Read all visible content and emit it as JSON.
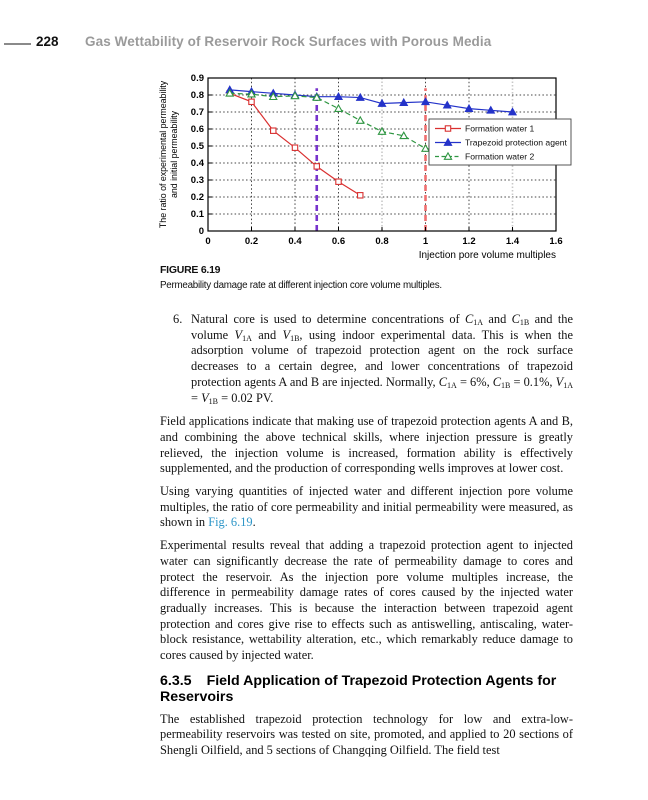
{
  "page": {
    "number": "228",
    "running_title": "Gas Wettability of Reservoir Rock Surfaces with Porous Media"
  },
  "figure": {
    "label": "FIGURE 6.19",
    "caption": "Permeability damage rate at different injection core volume multiples."
  },
  "chart_data": {
    "type": "line",
    "title": "",
    "xlabel": "Injection pore volume multiples",
    "ylabel_line1": "The ratio of experimental permeability",
    "ylabel_line2": "and initial permeability",
    "xlim": [
      0,
      1.6
    ],
    "ylim": [
      0,
      0.9
    ],
    "xticks": [
      0,
      0.2,
      0.4,
      0.6,
      0.8,
      1,
      1.2,
      1.4,
      1.6
    ],
    "xtick_labels": [
      "0",
      "0.2",
      "0.4",
      "0.6",
      "0.8",
      "1",
      "1.2",
      "1.4",
      "1.6"
    ],
    "yticks": [
      0,
      0.1,
      0.2,
      0.3,
      0.4,
      0.5,
      0.6,
      0.7,
      0.8,
      0.9
    ],
    "ytick_labels": [
      "0",
      "0.1",
      "0.2",
      "0.3",
      "0.4",
      "0.5",
      "0.6",
      "0.7",
      "0.8",
      "0.9"
    ],
    "grid": "dashed",
    "legend_position": "inside-right",
    "series": [
      {
        "name": "Formation water 1",
        "color": "#d93030",
        "line": "solid",
        "marker": "open-square",
        "points": [
          [
            0.1,
            0.81
          ],
          [
            0.2,
            0.76
          ],
          [
            0.3,
            0.59
          ],
          [
            0.4,
            0.49
          ],
          [
            0.5,
            0.38
          ],
          [
            0.6,
            0.29
          ],
          [
            0.7,
            0.21
          ]
        ]
      },
      {
        "name": "Trapezoid protection agent",
        "color": "#2433c9",
        "line": "solid",
        "marker": "filled-triangle",
        "points": [
          [
            0.1,
            0.83
          ],
          [
            0.2,
            0.82
          ],
          [
            0.3,
            0.81
          ],
          [
            0.4,
            0.8
          ],
          [
            0.5,
            0.79
          ],
          [
            0.6,
            0.79
          ],
          [
            0.7,
            0.785
          ],
          [
            0.8,
            0.75
          ],
          [
            0.9,
            0.755
          ],
          [
            1.0,
            0.76
          ],
          [
            1.1,
            0.74
          ],
          [
            1.2,
            0.72
          ],
          [
            1.3,
            0.71
          ],
          [
            1.4,
            0.7
          ]
        ]
      },
      {
        "name": "Formation water 2",
        "color": "#2f9642",
        "line": "dashed",
        "marker": "open-triangle",
        "points": [
          [
            0.1,
            0.81
          ],
          [
            0.2,
            0.805
          ],
          [
            0.3,
            0.79
          ],
          [
            0.4,
            0.795
          ],
          [
            0.5,
            0.785
          ],
          [
            0.6,
            0.72
          ],
          [
            0.7,
            0.65
          ],
          [
            0.8,
            0.585
          ],
          [
            0.9,
            0.56
          ],
          [
            1.0,
            0.485
          ],
          [
            1.1,
            0.47
          ],
          [
            1.2,
            0.45
          ],
          [
            1.3,
            0.44
          ],
          [
            1.4,
            0.44
          ]
        ]
      }
    ],
    "reference_lines": [
      {
        "x": 0.5,
        "color": "#7733cc",
        "style": "dashed",
        "y_top": 0.84
      },
      {
        "x": 1.0,
        "color": "#ef6f6f",
        "style": "dashed",
        "y_top": 0.84
      }
    ],
    "light_gridlines_x": [
      0.8,
      1.4
    ]
  },
  "body": {
    "item6": {
      "num": "6.",
      "s1": "Natural core is used to determine concentrations of ",
      "m1": {
        "b": "C",
        "s": "1A"
      },
      "s2": " and ",
      "m2": {
        "b": "C",
        "s": "1B"
      },
      "s3": " and the volume ",
      "m3": {
        "b": "V",
        "s": "1A"
      },
      "s4": " and ",
      "m4": {
        "b": "V",
        "s": "1B"
      },
      "s5": ", using indoor experimental data. This is when the adsorption volume of trapezoid protection agent on the rock surface decreases to a certain degree, and lower concentrations of trapezoid protection agents A and B are injected. Normally, ",
      "m5": {
        "b": "C",
        "s": "1A"
      },
      "s6": " = 6%, ",
      "m6": {
        "b": "C",
        "s": "1B"
      },
      "s7": " = 0.1%, ",
      "m7": {
        "b": "V",
        "s": "1A"
      },
      "s8": " = ",
      "m8": {
        "b": "V",
        "s": "1B"
      },
      "s9": " = 0.02 PV."
    },
    "p1": "Field applications indicate that making use of trapezoid protection agents A and B, and combining the above technical skills, where injection pressure is greatly relieved, the injection volume is increased, formation ability is effectively supplemented, and the production of corresponding wells improves at lower cost.",
    "p2": {
      "before": "Using varying quantities of injected water and different injection pore volume multiples, the ratio of core permeability and initial permeability were measured, as shown in ",
      "link": "Fig. 6.19",
      "after": "."
    },
    "p3": "Experimental results reveal that adding a trapezoid protection agent to injected water can significantly decrease the rate of permeability damage to cores and protect the reservoir. As the injection pore volume multiples increase, the difference in permeability damage rates of cores caused by the injected water gradually increases. This is because the interaction between trapezoid agent protection and cores give rise to effects such as antiswelling, antiscaling, water-block resistance, wettability alteration, etc., which remarkably reduce damage to cores caused by injected water.",
    "heading": {
      "number": "6.3.5",
      "title": "Field Application of Trapezoid Protection Agents for Reservoirs"
    },
    "p4": "The established trapezoid protection technology for low and extra-low-permeability reservoirs was tested on site, promoted, and applied to 20 sections of Shengli Oilfield, and 5 sections of Changqing Oilfield. The field test"
  },
  "colors": {
    "link": "#2E96C8",
    "running_title": "#9a9a9a"
  }
}
